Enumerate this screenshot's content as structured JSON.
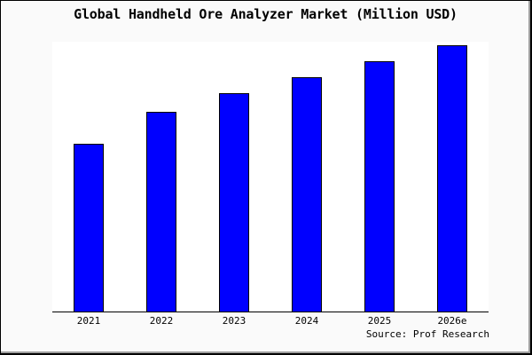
{
  "figure": {
    "background": "#fafafa",
    "border_color": "#000000",
    "plot_background": "#ffffff"
  },
  "chart_data": {
    "type": "bar",
    "title": "Global Handheld Ore Analyzer Market (Million USD)",
    "categories": [
      "2021",
      "2022",
      "2023",
      "2024",
      "2025",
      "2026e"
    ],
    "values": [
      63,
      75,
      82,
      88,
      94,
      100
    ],
    "values_note": "relative bar heights estimated from pixels; y-axis labels not shown; 2026e indexed to 100",
    "unit": "Million USD",
    "ylim": [
      0,
      101
    ],
    "xlabel": "",
    "ylabel": "",
    "grid": false,
    "legend": false,
    "y_axis_visible": false,
    "bar_color": "#0000ff",
    "bar_edge_color": "#000000",
    "source": "Source: Prof Research"
  }
}
